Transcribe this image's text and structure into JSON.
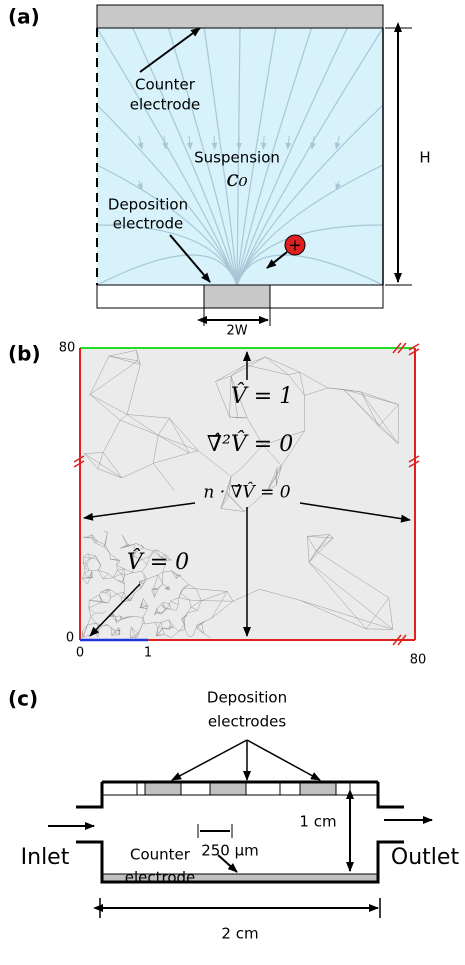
{
  "panel_a": {
    "label": "(a)",
    "counter_electrode": [
      "Counter",
      "electrode"
    ],
    "suspension": "Suspension",
    "concentration": "c₀",
    "deposition_electrode": [
      "Deposition",
      "electrode"
    ],
    "particle": "+",
    "height": "H",
    "width": "2W"
  },
  "panel_b": {
    "label": "(b)",
    "y_top": "80",
    "y_bottom": "0",
    "x_left": "0",
    "x_one": "1",
    "x_right": "80",
    "top_condition": "V̂ = 1",
    "equation": "∇̂²V̂ = 0",
    "side_condition": "n · ∇̂V̂ = 0",
    "electrode_condition": "V̂ = 0"
  },
  "panel_c": {
    "label": "(c)",
    "deposition_electrodes": [
      "Deposition",
      "electrodes"
    ],
    "spacing": "250 µm",
    "height": "1 cm",
    "inlet": "Inlet",
    "outlet": "Outlet",
    "counter_electrode": [
      "Counter",
      "electrode"
    ],
    "width": "2 cm"
  }
}
